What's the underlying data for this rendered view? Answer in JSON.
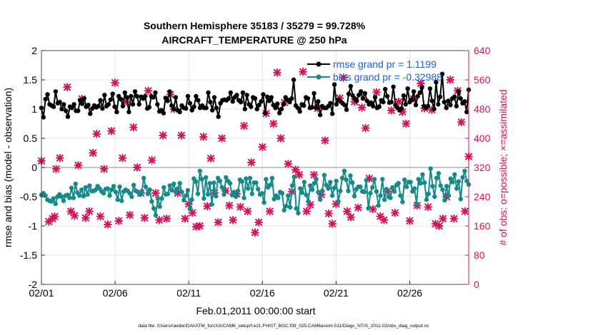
{
  "colors": {
    "rmse": "#000000",
    "bias": "#148a8a",
    "obs": "#d4145a",
    "legend_text": "#1f5fd6",
    "zero_line": "#b3b3b3"
  },
  "chart_data": {
    "type": "line",
    "title_line1": "Southern Hemisphere 35183 / 35279 = 99.728%",
    "title_line2": "AIRCRAFT_TEMPERATURE @ 250 hPa",
    "xlabel": "Feb.01,2011 00:00:00 start",
    "ylabel_left": "rmse and bias (model - observation)",
    "ylabel_right": "# of obs: o=possible; ×=assimilated",
    "footnote": "data file: /Users/raeder/DAI/ATM_forcXX/CAM6_setup/f.e21.FHIST_BGC.f09_025.CAM6assim.011/Diags_NTrS_2011-02/obs_diag_output.nc",
    "xlim": [
      0,
      29
    ],
    "ylim_left": [
      -2,
      2
    ],
    "ylim_right": [
      0,
      640
    ],
    "x_ticks": [
      0,
      5,
      10,
      15,
      20,
      25
    ],
    "x_tick_labels": [
      "02/01",
      "02/06",
      "02/11",
      "02/16",
      "02/21",
      "02/26"
    ],
    "y_left_ticks": [
      -2,
      -1.5,
      -1,
      -0.5,
      0,
      0.5,
      1,
      1.5,
      2
    ],
    "y_left_tick_labels": [
      "-2",
      "-1.5",
      "-1",
      "-0.5",
      "0",
      "0.5",
      "1",
      "1.5",
      "2"
    ],
    "y_right_ticks": [
      0,
      80,
      160,
      240,
      320,
      400,
      480,
      560,
      640
    ],
    "y_right_tick_labels": [
      "0",
      "80",
      "160",
      "240",
      "320",
      "400",
      "480",
      "560",
      "640"
    ],
    "legend": {
      "rmse_label": "rmse grand pr = 1.1199",
      "bias_label": "bias grand pr = -0.32988"
    },
    "series": [
      {
        "name": "rmse",
        "values": [
          1.02,
          0.86,
          1.17,
          1.25,
          1.08,
          1.06,
          1.04,
          1.3,
          1.1,
          1.12,
          1.0,
          1.08,
          0.97,
          0.87,
          1.04,
          1.02,
          1.08,
          0.97,
          0.97,
          1.15,
          1.09,
          1.18,
          1.04,
          1.07,
          0.92,
          1.01,
          1.06,
          1.03,
          1.05,
          1.15,
          1.01,
          1.24,
          1.05,
          1.08,
          1.16,
          1.26,
          1.04,
          0.95,
          1.22,
          1.17,
          1.05,
          1.28,
          1.2,
          0.95,
          1.22,
          1.08,
          1.3,
          1.22,
          1.08,
          1.21,
          1.18,
          1.22,
          1.01,
          1.03,
          1.22,
          1.2,
          1.28,
          1.08,
          0.96,
          0.98,
          0.93,
          1.19,
          1.14,
          1.3,
          1.06,
          1.0,
          1.2,
          0.98,
          0.95,
          1.06,
          1.02,
          1.01,
          1.22,
          1.1,
          0.98,
          1.04,
          1.22,
          1.15,
          1.02,
          1.06,
          1.02,
          1.02,
          1.28,
          1.12,
          0.98,
          1.2,
          1.02,
          0.87,
          1.1,
          1.15,
          1.16,
          1.15,
          1.18,
          1.28,
          1.13,
          1.2,
          1.24,
          1.15,
          1.12,
          1.28,
          1.0,
          1.24,
          1.08,
          1.04,
          1.2,
          1.18,
          1.0,
          1.07,
          1.13,
          1.25,
          0.93,
          1.21,
          1.14,
          1.2,
          1.07,
          1.02,
          1.09,
          0.93,
          1.0,
          1.08,
          1.2,
          1.16,
          1.12,
          1.18,
          1.5,
          1.06,
          1.02,
          0.96,
          1.08,
          1.06,
          1.2,
          1.18,
          1.02,
          1.03,
          1.27,
          1.02,
          1.13,
          0.9,
          1.05,
          1.02,
          1.02,
          1.05,
          1.1,
          0.92,
          1.42,
          1.08,
          1.16,
          1.13,
          1.1,
          1.07,
          0.99,
          1.26,
          1.39,
          1.23,
          1.18,
          1.14,
          1.24,
          1.3,
          1.18,
          1.27,
          1.14,
          1.08,
          1.11,
          1.05,
          1.2,
          1.02,
          1.04,
          1.15,
          1.12,
          1.34,
          1.22,
          1.11,
          1.12,
          1.38,
          1.07,
          1.02,
          0.98,
          1.01,
          1.23,
          1.08,
          1.35,
          1.12,
          1.16,
          1.3,
          1.07,
          1.22,
          1.28,
          1.37,
          1.05,
          1.02,
          1.05,
          1.35,
          1.14,
          1.0,
          1.46,
          1.08,
          1.21,
          1.6,
          1.12,
          1.02,
          1.14,
          1.07,
          1.18,
          1.21,
          1.05,
          1.3,
          1.18,
          1.1,
          1.13,
          0.95,
          1.33
        ]
      },
      {
        "name": "bias",
        "values": [
          -0.47,
          -0.44,
          -0.48,
          -0.55,
          -0.57,
          -0.58,
          -0.53,
          -0.62,
          -0.5,
          -0.46,
          -0.5,
          -0.57,
          -0.48,
          -0.47,
          -0.52,
          -0.35,
          -0.52,
          -0.28,
          -0.43,
          -0.48,
          -0.38,
          -0.49,
          -0.34,
          -0.46,
          -0.31,
          -0.4,
          -0.4,
          -0.38,
          -0.32,
          -0.36,
          -0.41,
          -0.44,
          -0.37,
          -0.36,
          -0.48,
          -0.38,
          -0.32,
          -0.42,
          -0.55,
          -0.33,
          -0.57,
          -0.41,
          -0.38,
          -0.4,
          -0.44,
          -0.5,
          -0.3,
          -0.4,
          -0.42,
          -0.46,
          -0.42,
          -0.18,
          -0.33,
          -0.45,
          -0.38,
          -0.58,
          -0.7,
          -0.82,
          -0.53,
          -0.67,
          -0.53,
          -0.34,
          -0.46,
          -0.45,
          -0.31,
          -0.39,
          -0.28,
          -0.42,
          -0.36,
          -0.27,
          -0.42,
          -0.56,
          -0.48,
          -0.39,
          -0.71,
          -0.55,
          -0.19,
          -0.24,
          -0.45,
          -0.06,
          -0.2,
          -0.53,
          -0.17,
          -0.46,
          -0.27,
          -0.63,
          -0.26,
          -0.49,
          -0.18,
          -0.23,
          -0.34,
          -0.46,
          -0.17,
          -0.23,
          -0.27,
          -0.47,
          -0.42,
          -0.5,
          -0.4,
          -0.21,
          -0.24,
          -0.52,
          -0.19,
          -0.36,
          -0.18,
          -0.45,
          -0.26,
          -0.26,
          -0.37,
          -0.46,
          -0.44,
          -0.6,
          -0.2,
          -0.34,
          -0.3,
          -0.18,
          -0.54,
          -0.48,
          -0.52,
          -0.42,
          -0.44,
          -0.73,
          -0.66,
          -0.48,
          -0.68,
          -0.31,
          -0.16,
          -0.7,
          -0.78,
          -0.36,
          -0.43,
          -0.25,
          -0.47,
          -0.58,
          -0.31,
          -0.38,
          -0.27,
          -0.2,
          -0.42,
          -0.55,
          -0.4,
          -0.13,
          -0.3,
          -0.36,
          -0.25,
          -0.48,
          -0.35,
          -0.23,
          -0.58,
          -0.4,
          -0.18,
          -0.06,
          -0.21,
          -0.4,
          -0.14,
          -0.26,
          -0.49,
          -0.37,
          -0.33,
          -0.33,
          -0.41,
          -0.42,
          -0.22,
          -0.7,
          -0.44,
          -0.34,
          -0.2,
          -0.41,
          -0.65,
          -0.48,
          -0.2,
          -0.55,
          -0.37,
          -0.5,
          -0.52,
          -0.34,
          -0.41,
          -0.3,
          -0.27,
          -0.48,
          -0.59,
          -0.21,
          -0.33,
          -0.25,
          -0.25,
          -0.41,
          -0.36,
          -0.62,
          -0.2,
          -0.27,
          -0.12,
          -0.26,
          -0.55,
          -0.45,
          -0.02,
          -0.32,
          -0.5,
          -0.18,
          -0.1,
          -0.31,
          -0.38,
          -0.56,
          -0.32,
          -0.48,
          -0.19,
          -0.25,
          -0.12,
          -0.36,
          -0.24,
          -0.54,
          -0.17,
          -0.06,
          -0.23,
          -0.29
        ]
      }
    ],
    "obs_times": [
      0.0,
      0.5,
      0.75,
      0.9,
      1.0,
      1.25,
      1.75,
      2.0,
      2.25,
      2.5,
      2.75,
      3.0,
      3.25,
      3.5,
      3.75,
      4.0,
      4.25,
      4.5,
      4.75,
      5.0,
      5.25,
      5.5,
      5.75,
      6.0,
      6.25,
      6.5,
      6.75,
      7.0,
      7.25,
      7.5,
      7.75,
      8.0,
      8.25,
      8.5,
      8.75,
      9.0,
      9.25,
      9.5,
      9.75,
      10.0,
      10.25,
      10.5,
      10.75,
      11.0,
      11.25,
      11.5,
      11.75,
      12.0,
      12.25,
      12.5,
      12.75,
      13.0,
      13.25,
      13.5,
      13.75,
      14.0,
      14.25,
      14.5,
      14.75,
      15.0,
      15.25,
      15.5,
      15.75,
      16.0,
      16.25,
      16.5,
      16.75,
      17.0,
      17.25,
      17.5,
      17.75,
      18.0,
      18.25,
      18.5,
      18.75,
      19.0,
      19.25,
      19.5,
      19.75,
      20.0,
      20.25,
      20.5,
      20.75,
      21.0,
      21.25,
      21.5,
      21.75,
      22.0,
      22.25,
      22.5,
      22.75,
      23.0,
      23.25,
      23.5,
      23.75,
      24.0,
      24.25,
      24.5,
      24.75,
      25.0,
      25.25,
      25.5,
      25.75,
      26.0,
      26.25,
      26.5,
      26.75,
      27.0,
      27.25,
      27.5,
      27.75,
      28.0,
      28.25,
      28.5,
      28.75,
      29.0
    ],
    "obs_assimilated": [
      338,
      172,
      180,
      186,
      316,
      346,
      540,
      200,
      188,
      326,
      508,
      182,
      200,
      360,
      412,
      186,
      316,
      164,
      420,
      552,
      174,
      346,
      500,
      190,
      430,
      320,
      250,
      182,
      530,
      340,
      250,
      176,
      408,
      180,
      520,
      480,
      250,
      408,
      180,
      220,
      196,
      158,
      160,
      404,
      214,
      345,
      250,
      170,
      400,
      256,
      216,
      176,
      248,
      212,
      434,
      200,
      334,
      142,
      170,
      376,
      468,
      200,
      440,
      580,
      400,
      498,
      330,
      254,
      314,
      300,
      582,
      200,
      218,
      300,
      482,
      246,
      394,
      194,
      166,
      220,
      510,
      566,
      200,
      184,
      500,
      210,
      484,
      428,
      290,
      206,
      526,
      186,
      176,
      254,
      476,
      196,
      500,
      472,
      440,
      174,
      508,
      216,
      550,
      482,
      212,
      478,
      166,
      160,
      180,
      240,
      560,
      180,
      530,
      444,
      200,
      350
    ]
  }
}
